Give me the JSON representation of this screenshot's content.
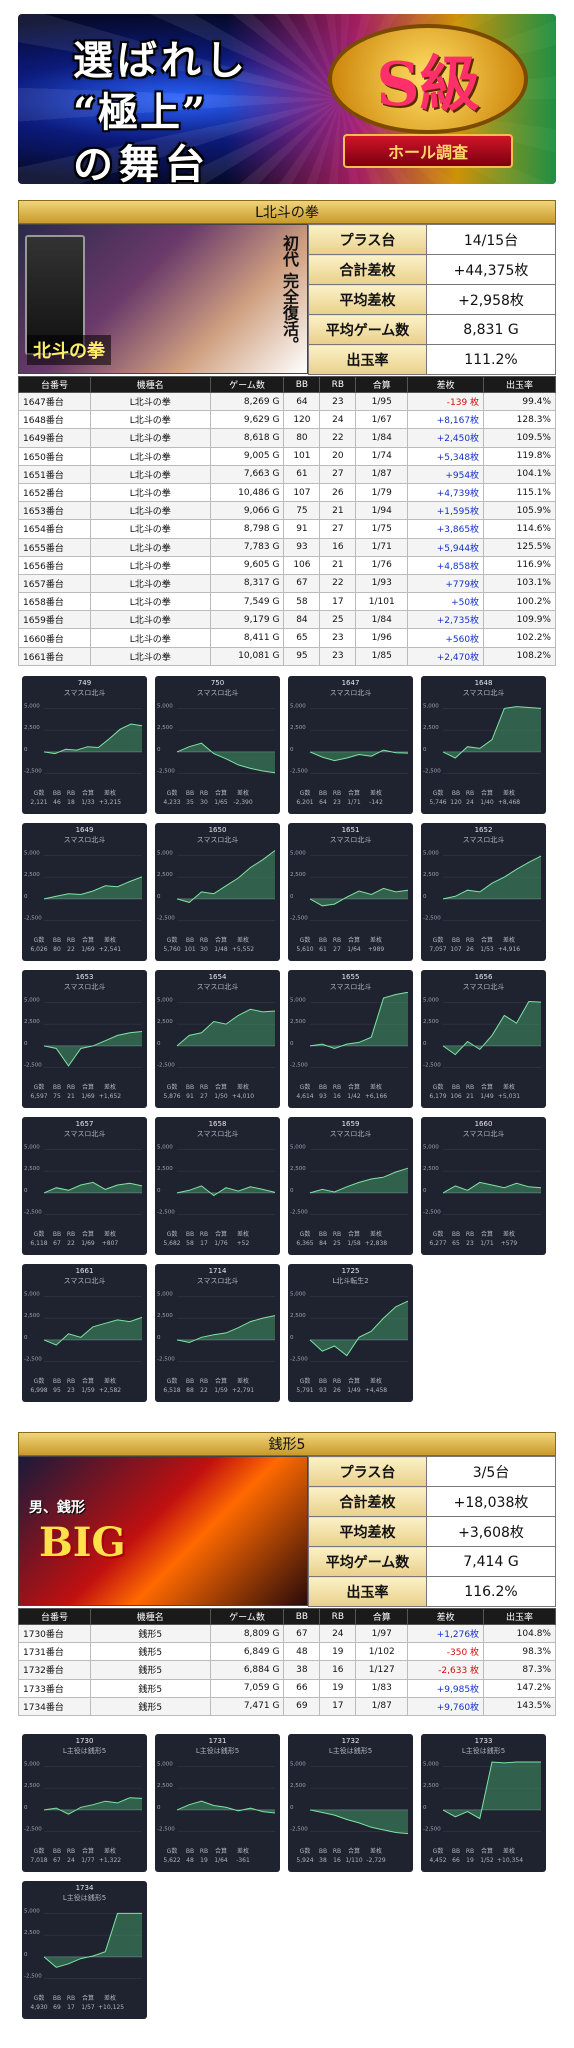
{
  "banner": {
    "line1": "選ばれし",
    "line2": "“極上”",
    "line3": "の舞台",
    "badge_main": "S級",
    "badge_ribbon": "ホール調査"
  },
  "labels": {
    "plus": "プラス台",
    "total": "合計差枚",
    "avg": "平均差枚",
    "games": "平均ゲーム数",
    "rate": "出玉率",
    "h_no": "台番号",
    "h_name": "機種名",
    "h_games": "ゲーム数",
    "h_bb": "BB",
    "h_rb": "RB",
    "h_comb": "合算",
    "h_diff": "差枚",
    "h_rate": "出玉率",
    "f_g": "G数",
    "f_bb": "BB",
    "f_rb": "RB",
    "f_comb": "合算",
    "f_diff": "差枚",
    "ax_top": "5,000",
    "ax_mid": "2,500",
    "ax_zero": "0",
    "ax_low": "-2,500"
  },
  "s1": {
    "title": "L北斗の拳",
    "hero_text": "北斗の拳",
    "subtitle": "初代 完全復活。",
    "plus": "14/15台",
    "total": "+44,375枚",
    "avg": "+2,958枚",
    "games": "8,831 G",
    "rate": "111.2%",
    "rows": [
      {
        "no": "1647番台",
        "name": "L北斗の拳",
        "g": "8,269 G",
        "bb": "64",
        "rb": "23",
        "comb": "1/95",
        "diff": "-139 枚",
        "rate": "99.4%"
      },
      {
        "no": "1648番台",
        "name": "L北斗の拳",
        "g": "9,629 G",
        "bb": "120",
        "rb": "24",
        "comb": "1/67",
        "diff": "+8,167枚",
        "rate": "128.3%"
      },
      {
        "no": "1649番台",
        "name": "L北斗の拳",
        "g": "8,618 G",
        "bb": "80",
        "rb": "22",
        "comb": "1/84",
        "diff": "+2,450枚",
        "rate": "109.5%"
      },
      {
        "no": "1650番台",
        "name": "L北斗の拳",
        "g": "9,005 G",
        "bb": "101",
        "rb": "20",
        "comb": "1/74",
        "diff": "+5,348枚",
        "rate": "119.8%"
      },
      {
        "no": "1651番台",
        "name": "L北斗の拳",
        "g": "7,663 G",
        "bb": "61",
        "rb": "27",
        "comb": "1/87",
        "diff": "+954枚",
        "rate": "104.1%"
      },
      {
        "no": "1652番台",
        "name": "L北斗の拳",
        "g": "10,486 G",
        "bb": "107",
        "rb": "26",
        "comb": "1/79",
        "diff": "+4,739枚",
        "rate": "115.1%"
      },
      {
        "no": "1653番台",
        "name": "L北斗の拳",
        "g": "9,066 G",
        "bb": "75",
        "rb": "21",
        "comb": "1/94",
        "diff": "+1,595枚",
        "rate": "105.9%"
      },
      {
        "no": "1654番台",
        "name": "L北斗の拳",
        "g": "8,798 G",
        "bb": "91",
        "rb": "27",
        "comb": "1/75",
        "diff": "+3,865枚",
        "rate": "114.6%"
      },
      {
        "no": "1655番台",
        "name": "L北斗の拳",
        "g": "7,783 G",
        "bb": "93",
        "rb": "16",
        "comb": "1/71",
        "diff": "+5,944枚",
        "rate": "125.5%"
      },
      {
        "no": "1656番台",
        "name": "L北斗の拳",
        "g": "9,605 G",
        "bb": "106",
        "rb": "21",
        "comb": "1/76",
        "diff": "+4,858枚",
        "rate": "116.9%"
      },
      {
        "no": "1657番台",
        "name": "L北斗の拳",
        "g": "8,317 G",
        "bb": "67",
        "rb": "22",
        "comb": "1/93",
        "diff": "+779枚",
        "rate": "103.1%"
      },
      {
        "no": "1658番台",
        "name": "L北斗の拳",
        "g": "7,549 G",
        "bb": "58",
        "rb": "17",
        "comb": "1/101",
        "diff": "+50枚",
        "rate": "100.2%"
      },
      {
        "no": "1659番台",
        "name": "L北斗の拳",
        "g": "9,179 G",
        "bb": "84",
        "rb": "25",
        "comb": "1/84",
        "diff": "+2,735枚",
        "rate": "109.9%"
      },
      {
        "no": "1660番台",
        "name": "L北斗の拳",
        "g": "8,411 G",
        "bb": "65",
        "rb": "23",
        "comb": "1/96",
        "diff": "+560枚",
        "rate": "102.2%"
      },
      {
        "no": "1661番台",
        "name": "L北斗の拳",
        "g": "10,081 G",
        "bb": "95",
        "rb": "23",
        "comb": "1/85",
        "diff": "+2,470枚",
        "rate": "108.2%"
      }
    ],
    "cards": [
      {
        "id": "749",
        "m": "スマスロ北斗",
        "g": "2,121",
        "bb": "46",
        "rb": "18",
        "comb": "1/33",
        "diff": "+3,215",
        "pts": [
          0,
          -200,
          300,
          200,
          600,
          500,
          1500,
          2600,
          3200,
          3000
        ]
      },
      {
        "id": "750",
        "m": "スマスロ北斗",
        "g": "4,233",
        "bb": "35",
        "rb": "30",
        "comb": "1/65",
        "diff": "-2,390",
        "pts": [
          0,
          600,
          1000,
          -200,
          -800,
          -1500,
          -1900,
          -2200,
          -2390
        ]
      },
      {
        "id": "1647",
        "m": "スマスロ北斗",
        "g": "6,201",
        "bb": "64",
        "rb": "23",
        "comb": "1/71",
        "diff": "-142",
        "pts": [
          0,
          -600,
          -1000,
          -700,
          -300,
          -500,
          200,
          -100,
          -142
        ]
      },
      {
        "id": "1648",
        "m": "スマスロ北斗",
        "g": "5,746",
        "bb": "120",
        "rb": "24",
        "comb": "1/40",
        "diff": "+8,468",
        "pts": [
          0,
          -700,
          600,
          400,
          1400,
          5000,
          5200,
          5100,
          5000
        ]
      },
      {
        "id": "1649",
        "m": "スマスロ北斗",
        "g": "6,026",
        "bb": "80",
        "rb": "22",
        "comb": "1/69",
        "diff": "+2,541",
        "pts": [
          0,
          300,
          600,
          500,
          900,
          1500,
          1400,
          2000,
          2541
        ]
      },
      {
        "id": "1650",
        "m": "スマスロ北斗",
        "g": "5,760",
        "bb": "101",
        "rb": "30",
        "comb": "1/48",
        "diff": "+5,552",
        "pts": [
          0,
          -400,
          800,
          600,
          1500,
          2400,
          3600,
          4500,
          5552
        ]
      },
      {
        "id": "1651",
        "m": "スマスロ北斗",
        "g": "5,610",
        "bb": "61",
        "rb": "27",
        "comb": "1/64",
        "diff": "+989",
        "pts": [
          0,
          -800,
          -600,
          200,
          900,
          500,
          1200,
          800,
          989
        ]
      },
      {
        "id": "1652",
        "m": "スマスロ北斗",
        "g": "7,057",
        "bot": "",
        "bb": "107",
        "rb": "26",
        "comb": "1/53",
        "diff": "+4,916",
        "pts": [
          0,
          300,
          1000,
          800,
          1800,
          2500,
          3400,
          4200,
          4916
        ]
      },
      {
        "id": "1653",
        "m": "スマスロ北斗",
        "g": "6,597",
        "bb": "75",
        "rb": "21",
        "comb": "1/69",
        "diff": "+1,652",
        "pts": [
          0,
          -300,
          -2300,
          -300,
          0,
          600,
          1200,
          1500,
          1652
        ]
      },
      {
        "id": "1654",
        "m": "スマスロ北斗",
        "g": "5,876",
        "bb": "91",
        "rb": "27",
        "comb": "1/50",
        "diff": "+4,010",
        "pts": [
          0,
          1200,
          1500,
          2800,
          2500,
          3500,
          4200,
          3900,
          4010
        ]
      },
      {
        "id": "1655",
        "m": "スマスロ北斗",
        "g": "4,614",
        "bb": "93",
        "rb": "16",
        "comb": "1/42",
        "diff": "+6,166",
        "pts": [
          0,
          200,
          -300,
          200,
          400,
          1000,
          5500,
          5900,
          6166
        ]
      },
      {
        "id": "1656",
        "m": "スマスロ北斗",
        "g": "6,179",
        "bb": "106",
        "rb": "21",
        "comb": "1/49",
        "diff": "+5,031",
        "pts": [
          0,
          -1000,
          500,
          -400,
          1200,
          3500,
          2600,
          5100,
          5031
        ]
      },
      {
        "id": "1657",
        "m": "スマスロ北斗",
        "g": "6,118",
        "bb": "67",
        "rb": "22",
        "comb": "1/69",
        "diff": "+807",
        "pts": [
          0,
          600,
          300,
          900,
          1200,
          400,
          900,
          1100,
          807
        ]
      },
      {
        "id": "1658",
        "m": "スマスロ北斗",
        "g": "5,682",
        "bb": "58",
        "rb": "17",
        "comb": "1/76",
        "diff": "+52",
        "pts": [
          0,
          300,
          800,
          -300,
          600,
          200,
          700,
          400,
          52
        ]
      },
      {
        "id": "1659",
        "m": "スマスロ北斗",
        "g": "6,365",
        "bb": "84",
        "rb": "25",
        "comb": "1/58",
        "diff": "+2,838",
        "pts": [
          0,
          400,
          100,
          700,
          1200,
          1600,
          1800,
          2400,
          2838
        ]
      },
      {
        "id": "1660",
        "m": "スマスロ北斗",
        "g": "6,277",
        "bb": "65",
        "rb": "23",
        "comb": "1/71",
        "diff": "+579",
        "pts": [
          0,
          800,
          300,
          1200,
          900,
          600,
          1100,
          700,
          579
        ]
      },
      {
        "id": "1661",
        "m": "スマスロ北斗",
        "g": "6,998",
        "bb": "95",
        "rb": "23",
        "comb": "1/59",
        "diff": "+2,582",
        "pts": [
          0,
          -600,
          700,
          300,
          1500,
          1900,
          2300,
          2100,
          2582
        ]
      },
      {
        "id": "1714",
        "m": "スマスロ北斗",
        "g": "6,518",
        "bb": "88",
        "rb": "22",
        "comb": "1/59",
        "diff": "+2,791",
        "pts": [
          0,
          -300,
          300,
          600,
          800,
          1400,
          2100,
          2500,
          2791
        ]
      },
      {
        "id": "1725",
        "m": "L北斗転生2",
        "g": "5,791",
        "bb": "93",
        "rb": "26",
        "comb": "1/49",
        "diff": "+4,458",
        "pts": [
          0,
          -1300,
          -700,
          -1800,
          300,
          1000,
          2500,
          3800,
          4458
        ]
      }
    ]
  },
  "s2": {
    "title": "銭形5",
    "hero_text": "BIG",
    "subtitle": "男、銭形",
    "plus": "3/5台",
    "total": "+18,038枚",
    "avg": "+3,608枚",
    "games": "7,414 G",
    "rate": "116.2%",
    "rows": [
      {
        "no": "1730番台",
        "name": "銭形5",
        "g": "8,809 G",
        "bb": "67",
        "rb": "24",
        "comb": "1/97",
        "diff": "+1,276枚",
        "rate": "104.8%"
      },
      {
        "no": "1731番台",
        "name": "銭形5",
        "g": "6,849 G",
        "bb": "48",
        "rb": "19",
        "comb": "1/102",
        "diff": "-350 枚",
        "rate": "98.3%"
      },
      {
        "no": "1732番台",
        "name": "銭形5",
        "g": "6,884 G",
        "bb": "38",
        "rb": "16",
        "comb": "1/127",
        "diff": "-2,633 枚",
        "rate": "87.3%"
      },
      {
        "no": "1733番台",
        "name": "銭形5",
        "g": "7,059 G",
        "bb": "66",
        "rb": "19",
        "comb": "1/83",
        "diff": "+9,985枚",
        "rate": "147.2%"
      },
      {
        "no": "1734番台",
        "name": "銭形5",
        "g": "7,471 G",
        "bb": "69",
        "rb": "17",
        "comb": "1/87",
        "diff": "+9,760枚",
        "rate": "143.5%"
      }
    ],
    "cards": [
      {
        "id": "1730",
        "m": "L主役は銭形5",
        "g": "7,018",
        "bb": "67",
        "rb": "24",
        "comb": "1/77",
        "diff": "+1,322",
        "pts": [
          0,
          200,
          -500,
          300,
          600,
          1000,
          800,
          1400,
          1322
        ]
      },
      {
        "id": "1731",
        "m": "L主役は銭形5",
        "g": "5,622",
        "bb": "48",
        "rb": "19",
        "comb": "1/64",
        "diff": "-361",
        "pts": [
          0,
          600,
          1000,
          500,
          300,
          -100,
          200,
          -200,
          -361
        ]
      },
      {
        "id": "1732",
        "m": "L主役は銭形5",
        "g": "5,924",
        "bb": "38",
        "rb": "16",
        "comb": "1/110",
        "diff": "-2,729",
        "pts": [
          0,
          -300,
          -600,
          -1100,
          -1500,
          -2000,
          -2300,
          -2600,
          -2729
        ]
      },
      {
        "id": "1733",
        "m": "L主役は銭形5",
        "g": "4,452",
        "bb": "66",
        "rb": "19",
        "comb": "1/52",
        "diff": "+10,354",
        "pts": [
          0,
          -800,
          -200,
          -1000,
          5500,
          5400,
          5500,
          5500,
          5500
        ]
      },
      {
        "id": "1734",
        "m": "L主役は銭形5",
        "g": "4,930",
        "bb": "69",
        "rb": "17",
        "comb": "1/57",
        "diff": "+10,125",
        "pts": [
          0,
          -1200,
          -800,
          -200,
          100,
          600,
          5000,
          5000,
          5000
        ]
      }
    ]
  }
}
